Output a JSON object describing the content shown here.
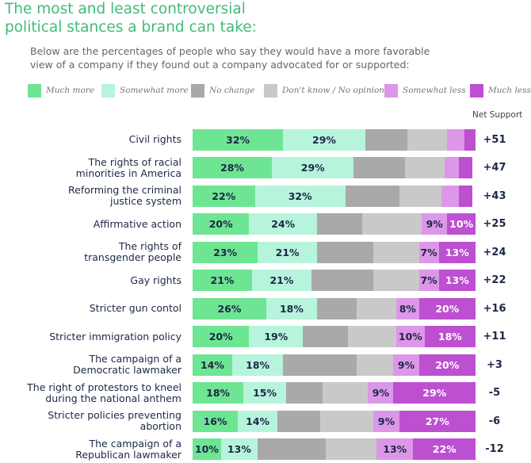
{
  "chart_data": {
    "type": "stacked_bar",
    "orientation": "horizontal",
    "title": "The most and least controversial\npolitical stances a brand can take:",
    "subtitle": "Below are the percentages of people who say they would have a more favorable\nview of a company if they found out a company advocated for or supported:",
    "categories": [
      "Civil rights",
      "The rights of racial\nminorities in America",
      "Reforming the criminal\njustice system",
      "Affirmative action",
      "The rights of\ntransgender people",
      "Gay rights",
      "Stricter gun contol",
      "Stricter immigration policy",
      "The campaign of a\nDemocratic lawmaker",
      "The right of protestors to kneel\nduring the national anthem",
      "Stricter policies preventing abortion",
      "The campaign of a\nRepublican lawmaker"
    ],
    "series": [
      {
        "name": "Much more",
        "color": "#6ee593",
        "values": [
          32,
          28,
          22,
          20,
          23,
          21,
          26,
          20,
          14,
          18,
          16,
          10
        ],
        "value_labels": [
          "32%",
          "28%",
          "22%",
          "20%",
          "23%",
          "21%",
          "26%",
          "20%",
          "14%",
          "18%",
          "16%",
          "10%"
        ]
      },
      {
        "name": "Somewhat more",
        "color": "#b6f4dc",
        "values": [
          29,
          29,
          32,
          24,
          21,
          21,
          18,
          19,
          18,
          15,
          14,
          13
        ],
        "value_labels": [
          "29%",
          "29%",
          "32%",
          "24%",
          "21%",
          "21%",
          "18%",
          "19%",
          "18%",
          "15%",
          "14%",
          "13%"
        ]
      },
      {
        "name": "No change",
        "color": "#a9a9a9",
        "values": [
          15,
          18,
          19,
          16,
          20,
          22,
          14,
          16,
          26,
          13,
          15,
          24
        ]
      },
      {
        "name": "Don't know / No opinion",
        "color": "#c9c9c9",
        "values": [
          14,
          14,
          15,
          21,
          16,
          16,
          14,
          17,
          13,
          16,
          19,
          18
        ]
      },
      {
        "name": "Somewhat less",
        "color": "#dc97e8",
        "values": [
          6,
          5,
          6,
          9,
          7,
          7,
          8,
          10,
          9,
          9,
          9,
          13
        ],
        "value_labels": [
          null,
          null,
          null,
          "9%",
          "7%",
          "7%",
          "8%",
          "10%",
          "9%",
          "9%",
          "9%",
          "13%"
        ]
      },
      {
        "name": "Much less",
        "color": "#bd4fd1",
        "values": [
          4,
          5,
          5,
          10,
          13,
          13,
          20,
          18,
          20,
          29,
          27,
          22
        ],
        "value_labels": [
          null,
          null,
          null,
          "10%",
          "13%",
          "13%",
          "20%",
          "18%",
          "20%",
          "29%",
          "27%",
          "22%"
        ]
      }
    ],
    "net_support": {
      "title": "Net Support",
      "values": [
        51,
        47,
        43,
        25,
        24,
        22,
        16,
        11,
        3,
        -5,
        -6,
        -12
      ],
      "value_labels": [
        "+51",
        "+47",
        "+43",
        "+25",
        "+24",
        "+22",
        "+16",
        "+11",
        "+3",
        "-5",
        "-6",
        "-12"
      ]
    }
  }
}
